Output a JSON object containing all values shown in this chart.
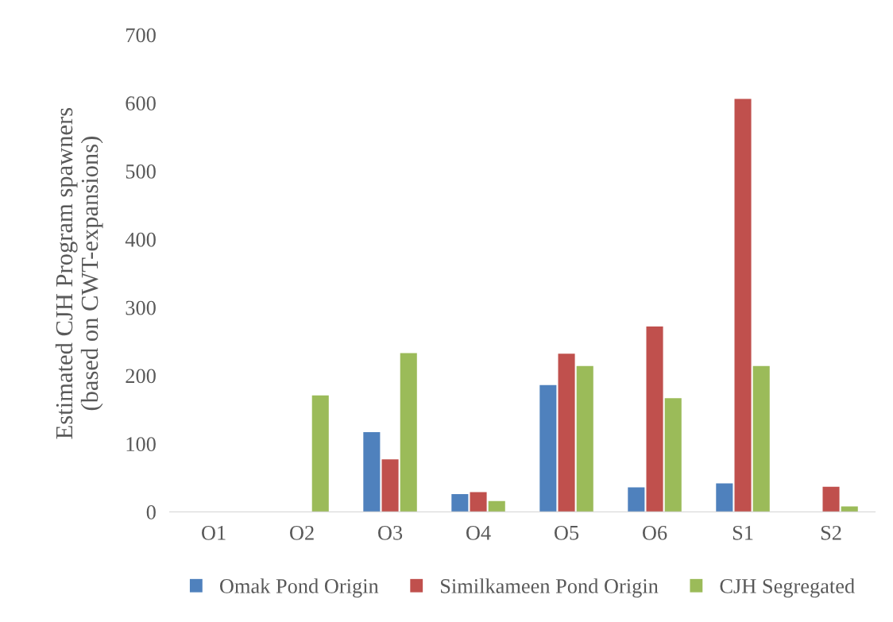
{
  "chart_data": {
    "type": "bar",
    "ylabel": "Estimated CJH Program spawners\n(based on CWT-expansions)",
    "categories": [
      "O1",
      "O2",
      "O3",
      "O4",
      "O5",
      "O6",
      "S1",
      "S2"
    ],
    "series": [
      {
        "name": "Omak Pond Origin",
        "color": "#4f81bd",
        "values": [
          null,
          null,
          117,
          26,
          186,
          36,
          42,
          null
        ]
      },
      {
        "name": "Similkameen Pond Origin",
        "color": "#c0504d",
        "values": [
          null,
          null,
          77,
          29,
          232,
          272,
          606,
          37
        ]
      },
      {
        "name": "CJH Segregated",
        "color": "#9bbb59",
        "values": [
          null,
          171,
          233,
          16,
          214,
          167,
          214,
          8
        ]
      }
    ],
    "ylim": [
      0,
      700
    ],
    "yticks": [
      0,
      100,
      200,
      300,
      400,
      500,
      600,
      700
    ],
    "grid": false,
    "legend": "bottom"
  }
}
